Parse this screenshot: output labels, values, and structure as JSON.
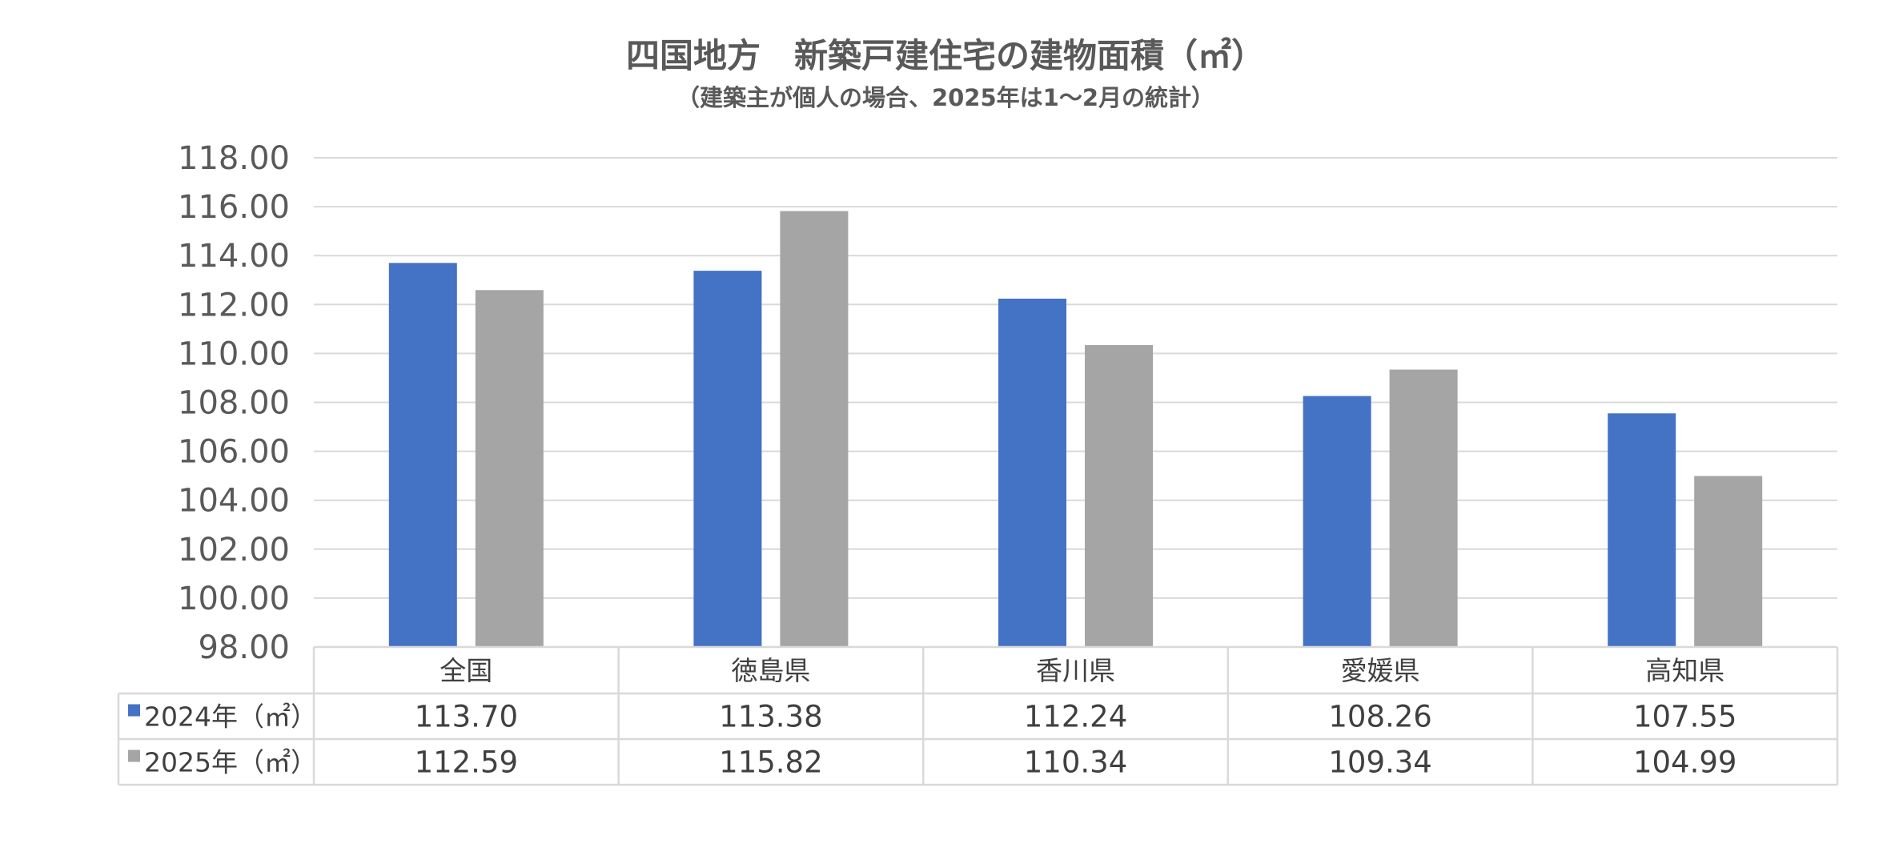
{
  "chart_data": {
    "type": "bar",
    "title": "四国地方　新築戸建住宅の建物面積（㎡）",
    "subtitle": "（建築主が個人の場合、2025年は1～2月の統計）",
    "categories": [
      "全国",
      "徳島県",
      "香川県",
      "愛媛県",
      "高知県"
    ],
    "series": [
      {
        "name": "2024年（㎡）",
        "color": "#4472C4",
        "values": [
          113.7,
          113.38,
          112.24,
          108.26,
          107.55
        ],
        "labels": [
          "113.70",
          "113.38",
          "112.24",
          "108.26",
          "107.55"
        ]
      },
      {
        "name": "2025年（㎡）",
        "color": "#A5A5A5",
        "values": [
          112.59,
          115.82,
          110.34,
          109.34,
          104.99
        ],
        "labels": [
          "112.59",
          "115.82",
          "110.34",
          "109.34",
          "104.99"
        ]
      }
    ],
    "ylim": [
      98,
      118
    ],
    "y_ticks": [
      "98.00",
      "100.00",
      "102.00",
      "104.00",
      "106.00",
      "108.00",
      "110.00",
      "112.00",
      "114.00",
      "116.00",
      "118.00"
    ],
    "grid": true,
    "legend": "data-table",
    "xlabel": "",
    "ylabel": ""
  }
}
